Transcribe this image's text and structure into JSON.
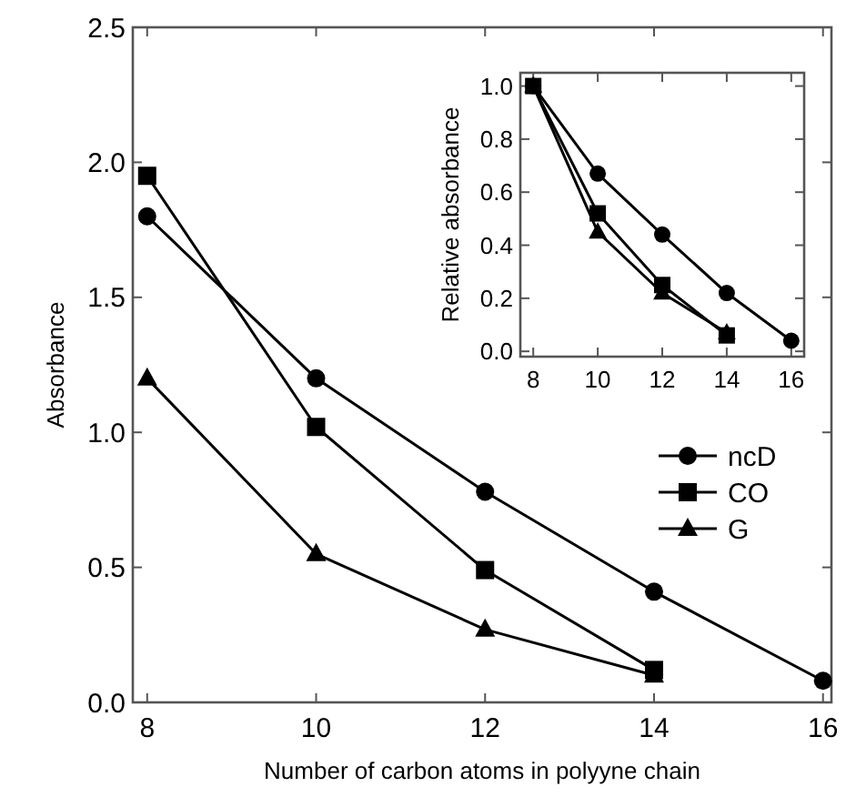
{
  "chart_data": [
    {
      "type": "line",
      "xlabel": "Number of carbon atoms in polyyne chain",
      "ylabel": "Absorbance",
      "xlim": [
        7.83,
        16.1
      ],
      "ylim": [
        0,
        2.5
      ],
      "xticks": [
        8,
        10,
        12,
        14,
        16
      ],
      "yticks": [
        {
          "value": 0,
          "label": "0.0"
        },
        {
          "value": 0.5,
          "label": "0.5"
        },
        {
          "value": 1,
          "label": "1.0"
        },
        {
          "value": 1.5,
          "label": "1.5"
        },
        {
          "value": 2,
          "label": "2.0"
        },
        {
          "value": 2.5,
          "label": "2.5"
        }
      ],
      "legend": "center right",
      "grid": false,
      "series": [
        {
          "name": "ncD",
          "color": "#000000",
          "marker": "circle",
          "x": [
            8,
            10,
            12,
            14,
            16
          ],
          "values": [
            1.8,
            1.2,
            0.78,
            0.41,
            0.08
          ]
        },
        {
          "name": "CO",
          "color": "#000000",
          "marker": "square",
          "x": [
            8,
            10,
            12,
            14
          ],
          "values": [
            1.95,
            1.02,
            0.49,
            0.12
          ]
        },
        {
          "name": "G",
          "color": "#000000",
          "marker": "triangle",
          "x": [
            8,
            10,
            12,
            14
          ],
          "values": [
            1.2,
            0.55,
            0.27,
            0.1
          ]
        }
      ]
    },
    {
      "type": "line",
      "ylabel": "Relative absorbance",
      "xlim": [
        7.6,
        16.4
      ],
      "ylim": [
        -0.02,
        1.05
      ],
      "xticks": [
        8,
        10,
        12,
        14,
        16
      ],
      "yticks": [
        {
          "value": 0,
          "label": "0.0"
        },
        {
          "value": 0.2,
          "label": "0.2"
        },
        {
          "value": 0.4,
          "label": "0.4"
        },
        {
          "value": 0.6,
          "label": "0.6"
        },
        {
          "value": 0.8,
          "label": "0.8"
        },
        {
          "value": 1,
          "label": "1.0"
        }
      ],
      "legend": false,
      "grid": false,
      "series": [
        {
          "color": "#000000",
          "marker": "circle",
          "x": [
            8,
            10,
            12,
            14,
            16
          ],
          "values": [
            1,
            0.67,
            0.44,
            0.22,
            0.04
          ]
        },
        {
          "color": "#000000",
          "marker": "square",
          "x": [
            8,
            10,
            12,
            14
          ],
          "values": [
            1,
            0.52,
            0.25,
            0.06
          ]
        },
        {
          "color": "#000000",
          "marker": "triangle",
          "x": [
            8,
            10,
            12,
            14
          ],
          "values": [
            1,
            0.45,
            0.22,
            0.07
          ]
        }
      ]
    }
  ]
}
